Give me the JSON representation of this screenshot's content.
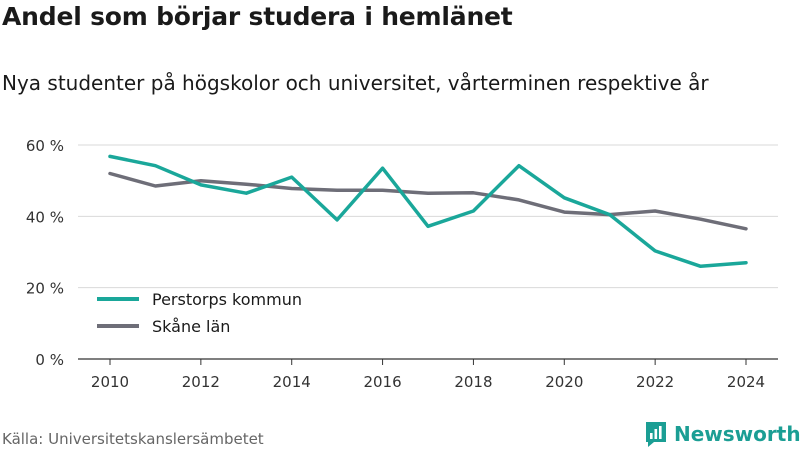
{
  "header": {
    "title": "Andel som börjar studera i hemlänet",
    "subtitle": "Nya studenter på högskolor och universitet, vårterminen respektive år"
  },
  "footer": {
    "source": "Källa: Universitetskanslersämbetet",
    "brand": "Newsworthy"
  },
  "colors": {
    "perstorp": "#1aa79a",
    "skane": "#6e6e78",
    "grid": "#d9d9d9",
    "brand": "#1b9e94"
  },
  "chart_data": {
    "type": "line",
    "x": [
      2010,
      2011,
      2012,
      2013,
      2014,
      2015,
      2016,
      2017,
      2018,
      2019,
      2020,
      2021,
      2022,
      2023,
      2024
    ],
    "xticks": [
      2010,
      2012,
      2014,
      2016,
      2018,
      2020,
      2022,
      2024
    ],
    "ylim": [
      0,
      60
    ],
    "yticks": [
      0,
      20,
      40,
      60
    ],
    "ytick_labels": [
      "0 %",
      "20 %",
      "40 %",
      "60 %"
    ],
    "grid": true,
    "legend_position": "bottom-left",
    "series": [
      {
        "name": "Perstorps kommun",
        "color": "#1aa79a",
        "values": [
          56.8,
          54.2,
          48.8,
          46.5,
          51.0,
          39.0,
          53.5,
          37.2,
          41.5,
          54.2,
          45.2,
          40.5,
          30.3,
          26.0,
          27.0
        ]
      },
      {
        "name": "Skåne län",
        "color": "#6e6e78",
        "values": [
          52.0,
          48.5,
          50.0,
          49.0,
          47.8,
          47.3,
          47.3,
          46.5,
          46.6,
          44.6,
          41.2,
          40.5,
          41.5,
          39.2,
          36.5
        ]
      }
    ]
  }
}
